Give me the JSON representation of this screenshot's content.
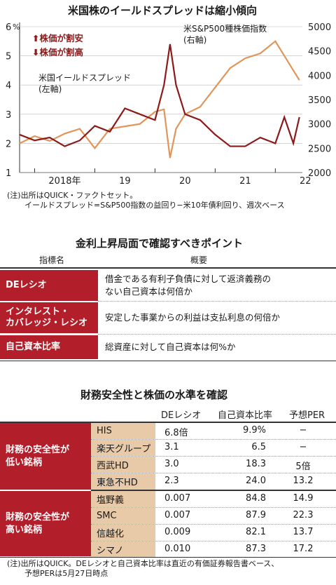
{
  "chart": {
    "title": "米国株のイールドスプレッドは縮小傾向",
    "left_unit": "%",
    "left_ticks": [
      "6",
      "5",
      "4",
      "3",
      "2",
      "1"
    ],
    "right_ticks": [
      "5000",
      "4500",
      "4000",
      "3500",
      "3000",
      "2500",
      "2000"
    ],
    "x_ticks": [
      "2018年",
      "19",
      "20",
      "21",
      "22"
    ],
    "legend_up": "株価が割安",
    "legend_down": "株価が割高",
    "spread_label_1": "米国イールドスプレッド",
    "spread_label_2": "(左軸)",
    "sp_label_1": "米S&P500種株価指数",
    "sp_label_2": "(右軸)",
    "colors": {
      "spread": "#8b1a1a",
      "sp500": "#e0955a"
    },
    "note_1": "(注)出所はQUICK・ファクトセット。",
    "note_2": "イールドスプレッド=S&P500指数の益回り−米10年債利回り、週次ベース"
  },
  "chart_data": {
    "type": "line",
    "x": [
      2017.75,
      2018.0,
      2018.25,
      2018.5,
      2018.75,
      2019.0,
      2019.25,
      2019.5,
      2019.75,
      2020.0,
      2020.15,
      2020.25,
      2020.35,
      2020.5,
      2020.75,
      2021.0,
      2021.25,
      2021.5,
      2021.75,
      2022.0,
      2022.15,
      2022.3,
      2022.4
    ],
    "series": [
      {
        "name": "米国イールドスプレッド",
        "axis": "left",
        "values": [
          2.3,
          2.1,
          2.2,
          1.9,
          2.1,
          2.6,
          2.4,
          3.2,
          3.0,
          2.8,
          4.0,
          5.4,
          4.0,
          3.0,
          2.8,
          2.3,
          1.9,
          1.9,
          2.2,
          2.0,
          2.9,
          2.0,
          2.9
        ]
      },
      {
        "name": "米S&P500種株価指数",
        "axis": "right",
        "values": [
          2600,
          2750,
          2650,
          2800,
          2900,
          2500,
          2900,
          2950,
          3000,
          3250,
          3300,
          2300,
          2900,
          3200,
          3350,
          3750,
          4150,
          4350,
          4450,
          4700,
          4400,
          4100,
          3900
        ]
      }
    ],
    "ylim_left": [
      1,
      6
    ],
    "ylim_right": [
      2000,
      5000
    ]
  },
  "points": {
    "title": "金利上昇局面で確認すべきポイント",
    "col_indicator": "指標名",
    "col_overview": "概要",
    "rows": [
      {
        "name_1": "DEレシオ",
        "name_2": "",
        "desc_1": "借金である有利子負債に対して返済義務の",
        "desc_2": "ない自己資本は何倍か"
      },
      {
        "name_1": "インタレスト・",
        "name_2": "カバレッジ・レシオ",
        "desc_1": "安定した事業からの利益は支払利息の何倍か",
        "desc_2": ""
      },
      {
        "name_1": "自己資本比率",
        "name_2": "",
        "desc_1": "総資産に対して自己資本は何%か",
        "desc_2": ""
      }
    ]
  },
  "stocks": {
    "title": "財務安全性と株価の水準を確認",
    "col_de": "DEレシオ",
    "col_equity": "自己資本比率",
    "col_per": "予想PER",
    "group_low_1": "財務の安全性が",
    "group_low_2": "低い銘柄",
    "group_high_1": "財務の安全性が",
    "group_high_2": "高い銘柄",
    "rows": [
      {
        "name": "HIS",
        "de": "6.8倍",
        "eq": "9.9%",
        "per": "−"
      },
      {
        "name": "楽天グループ",
        "de": "3.1",
        "eq": "6.5",
        "per": "−"
      },
      {
        "name": "西武HD",
        "de": "3.0",
        "eq": "18.3",
        "per": "5倍"
      },
      {
        "name": "東急不HD",
        "de": "2.3",
        "eq": "24.0",
        "per": "13.2"
      },
      {
        "name": "塩野義",
        "de": "0.007",
        "eq": "84.8",
        "per": "14.9"
      },
      {
        "name": "SMC",
        "de": "0.007",
        "eq": "87.9",
        "per": "22.3"
      },
      {
        "name": "信越化",
        "de": "0.009",
        "eq": "82.1",
        "per": "13.7"
      },
      {
        "name": "シマノ",
        "de": "0.010",
        "eq": "87.3",
        "per": "17.2"
      }
    ],
    "note_1": "(注)出所はQUICK。DEレシオと自己資本比率は直近の有価証券報告書ベース、",
    "note_2": "予想PERは5月27日時点"
  }
}
